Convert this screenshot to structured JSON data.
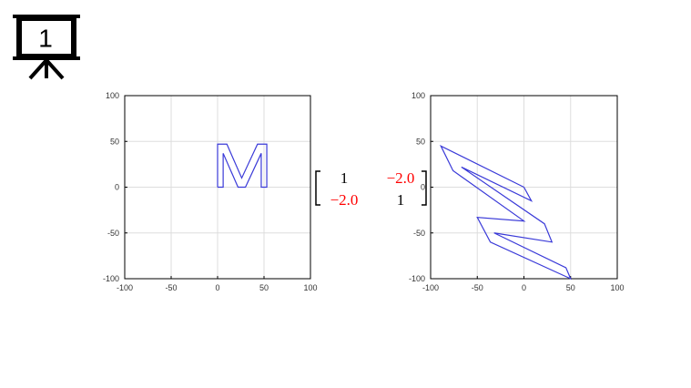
{
  "slide_number": "1",
  "chart_data": [
    {
      "type": "line",
      "xlim": [
        -100,
        100
      ],
      "ylim": [
        -100,
        100
      ],
      "xticks": [
        -100,
        -50,
        0,
        50,
        100
      ],
      "yticks": [
        -100,
        -50,
        0,
        50,
        100
      ],
      "grid": true,
      "series": [
        {
          "color": "#3a3ad8",
          "x": [
            0,
            0,
            10,
            26,
            43,
            53,
            53,
            47,
            47,
            30,
            22,
            6,
            6,
            0
          ],
          "values": [
            0,
            47,
            47,
            10,
            47,
            47,
            0,
            0,
            37,
            0,
            0,
            37,
            0,
            0
          ]
        }
      ]
    },
    {
      "type": "line",
      "xlim": [
        -100,
        100
      ],
      "ylim": [
        -100,
        100
      ],
      "xticks": [
        -100,
        -50,
        0,
        50,
        100
      ],
      "yticks": [
        -100,
        -50,
        0,
        50,
        100
      ],
      "grid": true,
      "series": [
        {
          "color": "#3a3ad8",
          "x": [
            0,
            -89,
            -76,
            0,
            -50,
            -36,
            50,
            45,
            -32,
            30,
            22,
            -67,
            8,
            0
          ],
          "values": [
            0,
            45,
            18,
            -37,
            -33,
            -60,
            -100,
            -88,
            -50,
            -60,
            -40,
            22,
            -15,
            0
          ]
        }
      ]
    }
  ],
  "matrix": {
    "rows": [
      [
        {
          "text": "1",
          "color": "#000000"
        },
        {
          "text": "−2.0",
          "color": "#ff0000"
        }
      ],
      [
        {
          "text": "−2.0",
          "color": "#ff0000"
        },
        {
          "text": "1",
          "color": "#000000"
        }
      ]
    ]
  }
}
